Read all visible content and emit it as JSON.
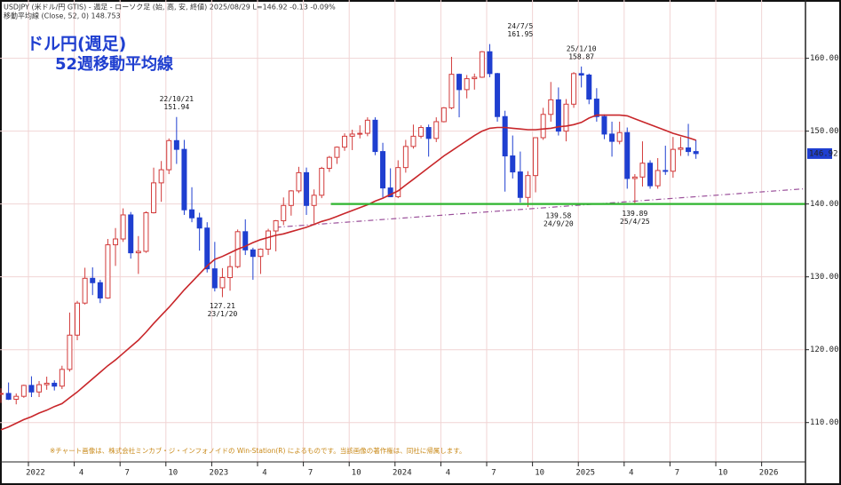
{
  "chart_data": {
    "type": "candlestick",
    "title": "ドル円(週足)",
    "subtitle": "52週移動平均線",
    "header": [
      "USDJPY (米ドル/円 GTIS) - 週足 - ローソク足 (始, 高, 安, 終値)  2025/08/29  L=146.92  -0.13  -0.09%",
      "移動平均線 (Close, 52, 0)  148.753"
    ],
    "note": "※チャート画像は、株式会社ミンカブ・ジ・インフォノイドの Win-Station(R) によるものです。当該画像の著作権は、同社に帰属します。",
    "up_color": "#d23a3a",
    "down_color": "#1f3fd0",
    "ma_color": "#c8262a",
    "grid": true,
    "xlim": [
      -1.86,
      50.87
    ],
    "ylim": [
      104.6,
      168.0
    ],
    "xticks": [
      {
        "value": 0,
        "label": "2022"
      },
      {
        "value": 3,
        "label": "4"
      },
      {
        "value": 6,
        "label": "7"
      },
      {
        "value": 9,
        "label": "10"
      },
      {
        "value": 12,
        "label": "2023"
      },
      {
        "value": 15,
        "label": "4"
      },
      {
        "value": 18,
        "label": "7"
      },
      {
        "value": 21,
        "label": "10"
      },
      {
        "value": 24,
        "label": "2024"
      },
      {
        "value": 27,
        "label": "4"
      },
      {
        "value": 30,
        "label": "7"
      },
      {
        "value": 33,
        "label": "10"
      },
      {
        "value": 36,
        "label": "2025"
      },
      {
        "value": 39,
        "label": "4"
      },
      {
        "value": 42,
        "label": "7"
      },
      {
        "value": 45,
        "label": "10"
      },
      {
        "value": 48,
        "label": "2026"
      }
    ],
    "yticks": [
      {
        "value": 110,
        "label": "110.00"
      },
      {
        "value": 120,
        "label": "120.00"
      },
      {
        "value": 130,
        "label": "130.00"
      },
      {
        "value": 140,
        "label": "140.00"
      },
      {
        "value": 150,
        "label": "150.00"
      },
      {
        "value": 160,
        "label": "160.00"
      }
    ],
    "x": [
      -1.8,
      -1.3,
      -0.8,
      -0.3,
      0.2,
      0.7,
      1.2,
      1.7,
      2.2,
      2.7,
      3.2,
      3.7,
      4.2,
      4.7,
      5.2,
      5.7,
      6.2,
      6.7,
      7.2,
      7.7,
      8.2,
      8.7,
      9.2,
      9.7,
      10.2,
      10.7,
      11.2,
      11.7,
      12.2,
      12.7,
      13.2,
      13.7,
      14.2,
      14.7,
      15.2,
      15.7,
      16.2,
      16.7,
      17.2,
      17.7,
      18.2,
      18.7,
      19.2,
      19.7,
      20.2,
      20.7,
      21.2,
      21.7,
      22.2,
      22.7,
      23.2,
      23.7,
      24.2,
      24.7,
      25.2,
      25.7,
      26.2,
      26.7,
      27.2,
      27.7,
      28.2,
      28.7,
      29.2,
      29.7,
      30.2,
      30.7,
      31.2,
      31.7,
      32.2,
      32.7,
      33.2,
      33.7,
      34.2,
      34.7,
      35.2,
      35.7,
      36.2,
      36.7,
      37.2,
      37.7,
      38.2,
      38.7,
      39.2,
      39.7,
      40.2,
      40.7,
      41.2,
      41.7,
      42.2,
      42.7,
      43.2,
      43.7
    ],
    "open": [
      113.9,
      114.0,
      113.2,
      113.6,
      115.1,
      114.2,
      115.2,
      115.4,
      115.0,
      117.3,
      122.0,
      126.4,
      129.8,
      129.2,
      127.1,
      134.4,
      135.2,
      138.5,
      133.3,
      133.5,
      138.8,
      142.9,
      144.7,
      148.7,
      147.5,
      139.2,
      138.1,
      136.7,
      131.1,
      128.5,
      129.9,
      131.4,
      136.2,
      133.7,
      132.8,
      133.8,
      136.3,
      137.7,
      139.8,
      141.8,
      144.3,
      139.8,
      141.2,
      144.9,
      146.4,
      147.8,
      149.3,
      149.6,
      149.7,
      151.5,
      147.2,
      142.2,
      141.0,
      145.0,
      147.9,
      149.3,
      150.5,
      149.0,
      151.3,
      153.2,
      157.8,
      155.7,
      157.2,
      157.4,
      160.9,
      157.9,
      152.0,
      146.6,
      144.4,
      140.9,
      143.9,
      149.1,
      152.3,
      154.3,
      150.0,
      153.7,
      157.9,
      157.7,
      154.4,
      152.0,
      149.6,
      148.6,
      149.8,
      143.5,
      143.7,
      145.6,
      142.5,
      144.6,
      144.5,
      147.5,
      147.7,
      147.2
    ],
    "high": [
      114.7,
      115.5,
      114.0,
      115.2,
      116.35,
      115.7,
      116.3,
      115.8,
      117.8,
      125.1,
      126.7,
      131.25,
      131.3,
      129.6,
      135.2,
      136.7,
      139.4,
      138.9,
      135.6,
      139.0,
      144.99,
      145.9,
      149.0,
      151.94,
      148.8,
      142.3,
      138.8,
      137.5,
      134.8,
      131.2,
      132.9,
      136.5,
      137.9,
      134.0,
      133.9,
      136.6,
      137.8,
      140.9,
      141.9,
      145.1,
      145.0,
      142.0,
      145.1,
      146.6,
      147.9,
      149.7,
      150.2,
      150.8,
      151.9,
      151.9,
      148.4,
      144.9,
      146.0,
      148.8,
      150.9,
      150.8,
      150.9,
      151.9,
      153.3,
      160.2,
      157.9,
      157.7,
      157.9,
      161.0,
      161.95,
      158.0,
      152.8,
      149.4,
      147.2,
      144.5,
      149.1,
      153.2,
      156.75,
      156.0,
      154.4,
      158.1,
      158.87,
      157.9,
      155.9,
      152.3,
      151.3,
      151.3,
      150.5,
      144.1,
      148.6,
      146.0,
      146.3,
      148.0,
      149.2,
      149.2,
      151.0,
      148.8
    ],
    "low": [
      112.7,
      113.1,
      112.5,
      113.4,
      113.5,
      113.5,
      114.5,
      114.4,
      114.6,
      117.0,
      121.3,
      126.2,
      127.5,
      126.4,
      127.0,
      131.5,
      134.8,
      132.5,
      130.4,
      133.3,
      138.7,
      140.3,
      144.1,
      145.5,
      138.5,
      137.5,
      133.6,
      130.6,
      128.0,
      127.21,
      128.1,
      131.2,
      133.0,
      129.6,
      130.4,
      133.0,
      133.5,
      137.1,
      138.4,
      141.5,
      138.5,
      137.3,
      140.8,
      144.4,
      145.5,
      147.3,
      147.4,
      149.0,
      149.3,
      146.7,
      140.9,
      140.95,
      140.8,
      144.3,
      147.6,
      149.0,
      146.5,
      148.5,
      151.2,
      153.0,
      151.9,
      154.5,
      155.7,
      157.3,
      157.4,
      151.3,
      141.7,
      143.5,
      140.2,
      139.58,
      141.6,
      148.8,
      151.3,
      149.4,
      148.6,
      153.2,
      156.0,
      153.7,
      151.3,
      148.9,
      146.5,
      148.2,
      142.1,
      139.89,
      142.4,
      142.1,
      142.1,
      144.0,
      143.6,
      146.6,
      146.6,
      146.2
    ],
    "close": [
      114.0,
      113.2,
      113.6,
      115.1,
      114.2,
      115.2,
      115.4,
      115.0,
      117.3,
      122.0,
      126.4,
      129.8,
      129.2,
      127.1,
      134.4,
      135.2,
      138.5,
      133.3,
      133.5,
      138.8,
      142.9,
      144.7,
      148.7,
      147.5,
      139.2,
      138.1,
      136.7,
      131.1,
      128.5,
      129.9,
      131.4,
      136.2,
      133.7,
      132.8,
      133.8,
      136.3,
      137.7,
      139.8,
      141.8,
      144.3,
      139.8,
      141.2,
      144.9,
      146.4,
      147.8,
      149.3,
      149.6,
      149.7,
      151.5,
      147.2,
      142.2,
      141.0,
      145.0,
      147.9,
      149.3,
      150.5,
      149.0,
      151.3,
      153.2,
      157.8,
      155.7,
      157.2,
      157.4,
      160.9,
      157.9,
      152.0,
      146.6,
      144.4,
      140.9,
      143.9,
      149.1,
      152.3,
      154.3,
      150.0,
      153.7,
      157.9,
      157.7,
      154.4,
      152.0,
      149.6,
      148.6,
      149.8,
      143.5,
      143.7,
      145.6,
      142.5,
      144.6,
      144.5,
      147.5,
      147.7,
      147.2,
      146.92
    ],
    "ma_values": [
      109.0,
      109.4,
      109.9,
      110.4,
      110.8,
      111.3,
      111.7,
      112.2,
      112.6,
      113.4,
      114.2,
      115.1,
      116.0,
      116.9,
      117.8,
      118.6,
      119.5,
      120.4,
      121.3,
      122.4,
      123.6,
      124.7,
      125.8,
      127.0,
      128.2,
      129.3,
      130.4,
      131.5,
      132.4,
      132.8,
      133.3,
      133.8,
      134.2,
      134.7,
      135.1,
      135.4,
      135.7,
      135.9,
      136.2,
      136.5,
      136.8,
      137.2,
      137.6,
      137.9,
      138.3,
      138.7,
      139.1,
      139.5,
      139.9,
      140.4,
      140.8,
      141.3,
      141.8,
      142.6,
      143.4,
      144.2,
      145.0,
      145.8,
      146.6,
      147.3,
      148.0,
      148.7,
      149.4,
      150.0,
      150.4,
      150.5,
      150.5,
      150.4,
      150.3,
      150.2,
      150.2,
      150.3,
      150.4,
      150.6,
      150.7,
      150.9,
      151.2,
      151.8,
      152.2,
      152.2,
      152.2,
      152.2,
      152.1,
      151.7,
      151.3,
      150.9,
      150.5,
      150.1,
      149.7,
      149.4,
      149.1,
      148.75
    ],
    "hline": {
      "value": 140,
      "x": [
        19.8,
        50.87
      ],
      "color": "#2fb52f"
    },
    "trendline": {
      "x": [
        16.2,
        50.87
      ],
      "values": [
        136.8,
        142.1
      ],
      "color": "#9a4f9a"
    },
    "last_price": 146.92,
    "annotations": [
      {
        "x": 9.7,
        "date": "22/10/21",
        "price": 151.94,
        "position": "above"
      },
      {
        "x": 12.7,
        "date": "23/1/20",
        "price": 127.21,
        "position": "below"
      },
      {
        "x": 32.2,
        "date": "24/7/5",
        "price": 161.95,
        "position": "above"
      },
      {
        "x": 36.2,
        "date": "25/1/10",
        "price": 158.87,
        "position": "above"
      },
      {
        "x": 34.7,
        "date": "24/9/20",
        "price": 139.58,
        "position": "below"
      },
      {
        "x": 39.7,
        "date": "25/4/25",
        "price": 139.89,
        "position": "below"
      }
    ]
  }
}
